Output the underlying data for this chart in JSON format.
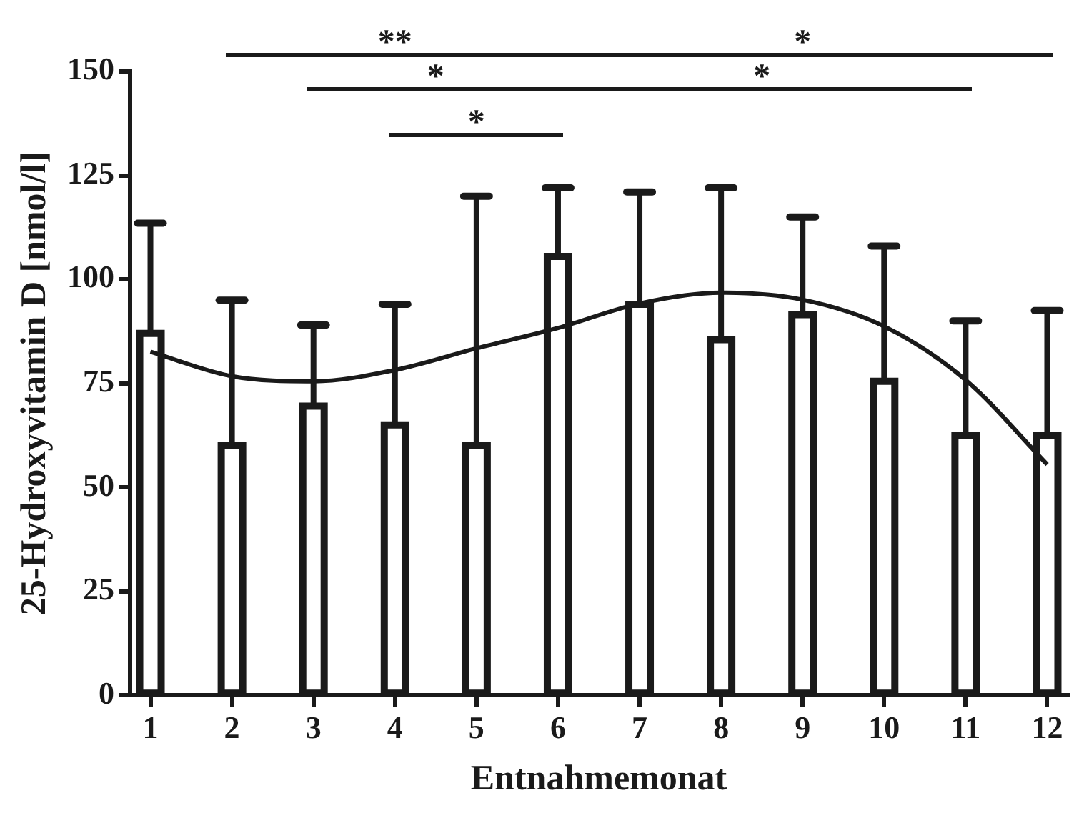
{
  "chart_data": {
    "type": "bar",
    "xlabel": "Entnahmemonat",
    "ylabel": "25-Hydroxyvitamin D [nmol/l]",
    "x": [
      1,
      2,
      3,
      4,
      5,
      6,
      7,
      8,
      9,
      10,
      11,
      12
    ],
    "xlim": [
      0.75,
      12.25
    ],
    "xticks": [
      1,
      2,
      3,
      4,
      5,
      6,
      7,
      8,
      9,
      10,
      11,
      12
    ],
    "ylim": [
      0,
      150
    ],
    "yticks": [
      0,
      25,
      50,
      75,
      100,
      125,
      150
    ],
    "grid": false,
    "legend": false,
    "series": [
      {
        "color": "#1a1a1a",
        "values": [
          87,
          60,
          69.5,
          65,
          60,
          105.5,
          94,
          85.5,
          91.5,
          75.5,
          62.5,
          62.5
        ],
        "errors": [
          [
            87,
            113.5
          ],
          [
            60,
            95
          ],
          [
            69.5,
            89
          ],
          [
            65,
            94
          ],
          [
            60,
            120
          ],
          [
            105.5,
            122
          ],
          [
            94,
            121
          ],
          [
            85.5,
            122
          ],
          [
            91.5,
            115
          ],
          [
            75.5,
            108
          ],
          [
            62.5,
            90
          ],
          [
            62.5,
            92.5
          ]
        ]
      },
      {
        "type": "line",
        "color": "#1a1a1a",
        "marker": "none",
        "line_style": "solid",
        "x": [
          1,
          2,
          3,
          4,
          5,
          6,
          7,
          8,
          9,
          10,
          11,
          12
        ],
        "values": [
          82.6,
          76.7,
          75.5,
          78.2,
          83.4,
          88.3,
          94.2,
          96.8,
          95.1,
          88.7,
          75.8,
          55.5
        ]
      }
    ],
    "annotations": [
      "**",
      "*",
      "*",
      "*",
      "*"
    ]
  }
}
